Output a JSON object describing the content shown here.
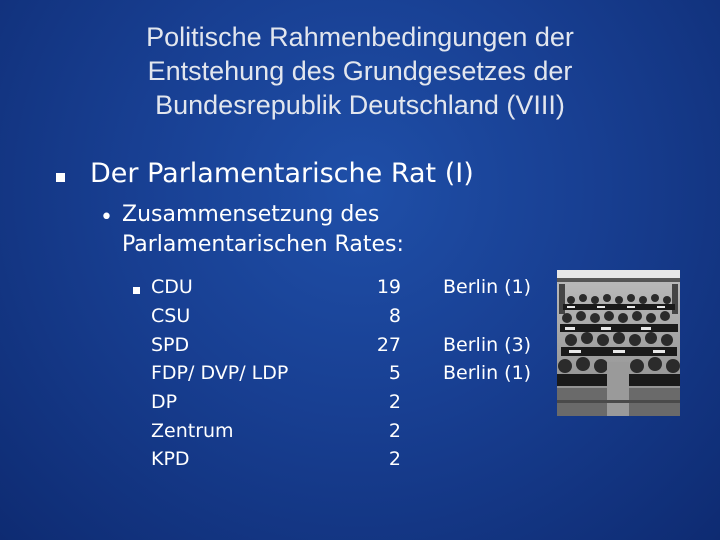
{
  "slide": {
    "title_lines": [
      "Politische Rahmenbedingungen der",
      "Entstehung des Grundgesetzes der",
      "Bundesrepublik Deutschland (VIII)"
    ],
    "heading": "Der Parlamentarische Rat (I)",
    "subheading_lines": [
      "Zusammensetzung des",
      "Parlamentarischen Rates:"
    ],
    "parties": [
      {
        "name": "CDU",
        "seats": "19",
        "note": "Berlin (1)"
      },
      {
        "name": "CSU",
        "seats": "8",
        "note": ""
      },
      {
        "name": "SPD",
        "seats": "27",
        "note": "Berlin (3)"
      },
      {
        "name": "FDP/ DVP/ LDP",
        "seats": "5",
        "note": "Berlin (1)"
      },
      {
        "name": "DP",
        "seats": "2",
        "note": ""
      },
      {
        "name": "Zentrum",
        "seats": "2",
        "note": ""
      },
      {
        "name": "KPD",
        "seats": "2",
        "note": ""
      }
    ],
    "colors": {
      "background": "#183f92",
      "text": "#ffffff",
      "title": "#e2e6ee"
    },
    "photo_icon": "parliament-assembly-photo"
  }
}
